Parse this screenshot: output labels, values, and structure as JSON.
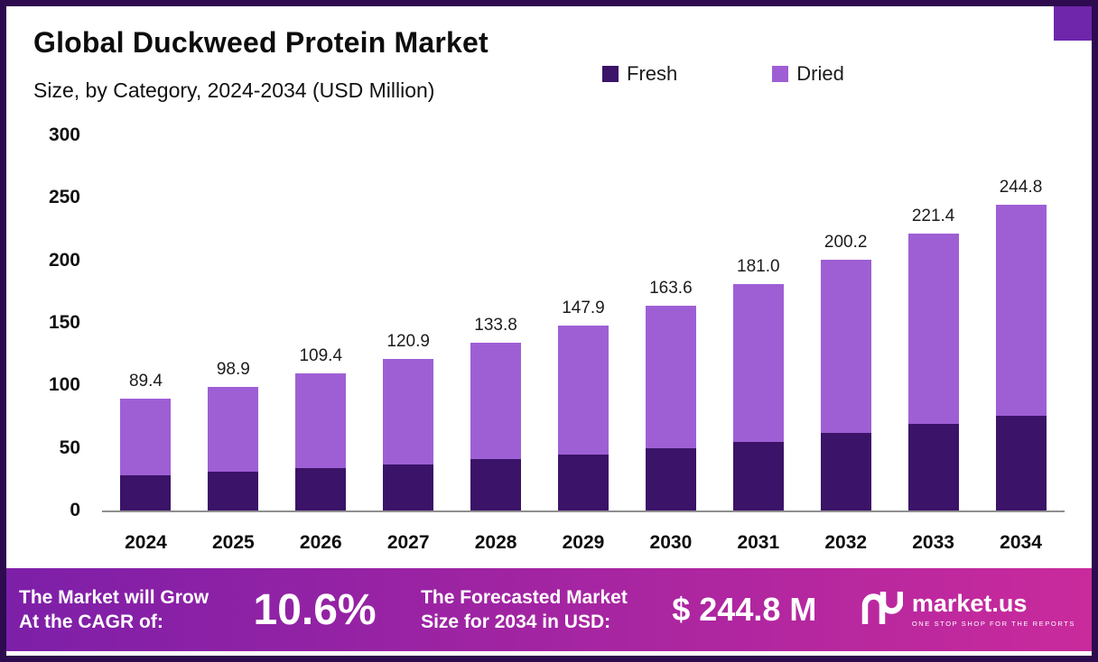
{
  "header": {
    "title": "Global Duckweed Protein Market",
    "subtitle": "Size, by Category, 2024-2034 (USD Million)"
  },
  "legend": [
    {
      "label": "Fresh",
      "color": "#3b1368"
    },
    {
      "label": "Dried",
      "color": "#9e5fd4"
    }
  ],
  "chart_data": {
    "type": "bar",
    "stacked": true,
    "title": "Global Duckweed Protein Market Size, by Category, 2024-2034 (USD Million)",
    "categories": [
      "2024",
      "2025",
      "2026",
      "2027",
      "2028",
      "2029",
      "2030",
      "2031",
      "2032",
      "2033",
      "2034"
    ],
    "series": [
      {
        "name": "Fresh",
        "color": "#3b1368",
        "values": [
          28,
          31,
          34,
          37,
          41,
          45,
          50,
          55,
          62,
          69,
          76
        ]
      },
      {
        "name": "Dried",
        "color": "#9e5fd4",
        "values": [
          61.4,
          67.9,
          75.4,
          83.9,
          92.8,
          102.9,
          113.6,
          126.0,
          138.2,
          152.4,
          168.8
        ]
      }
    ],
    "totals": [
      89.4,
      98.9,
      109.4,
      120.9,
      133.8,
      147.9,
      163.6,
      181.0,
      200.2,
      221.4,
      244.8
    ],
    "total_labels": [
      "89.4",
      "98.9",
      "109.4",
      "120.9",
      "133.8",
      "147.9",
      "163.6",
      "181.0",
      "200.2",
      "221.4",
      "244.8"
    ],
    "xlabel": "",
    "ylabel": "",
    "ylim": [
      0,
      300
    ],
    "yticks": [
      0,
      50,
      100,
      150,
      200,
      250,
      300
    ],
    "grid": false,
    "legend_position": "top-right"
  },
  "banner": {
    "cagr_label_line1": "The Market will Grow",
    "cagr_label_line2": "At the CAGR of:",
    "cagr_value": "10.6%",
    "forecast_label_line1": "The Forecasted Market",
    "forecast_label_line2": "Size for 2034 in USD:",
    "forecast_value": "$ 244.8 M",
    "brand_name": "market.us",
    "brand_tagline": "ONE STOP SHOP FOR THE REPORTS",
    "gradient_start": "#7d1fa8",
    "gradient_end": "#c92a9c"
  }
}
